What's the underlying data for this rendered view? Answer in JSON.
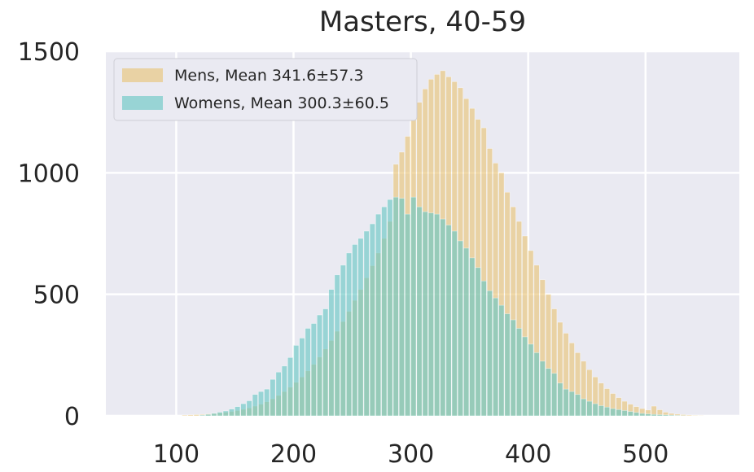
{
  "chart_data": {
    "type": "bar",
    "title": "Masters, 40-59",
    "xlabel": "",
    "ylabel": "",
    "xlim": [
      40,
      580
    ],
    "ylim": [
      0,
      1500
    ],
    "xticks": [
      100,
      200,
      300,
      400,
      500
    ],
    "yticks": [
      0,
      500,
      1000,
      1500
    ],
    "grid": true,
    "legend_position": "top-left",
    "bin_width": 5,
    "series": [
      {
        "name": "Mens, Mean 341.6±57.3",
        "color": "#E8C57A",
        "opacity": 0.65,
        "bin_start": 105,
        "values": [
          3,
          4,
          5,
          6,
          8,
          10,
          12,
          15,
          18,
          22,
          27,
          33,
          40,
          48,
          58,
          70,
          84,
          100,
          118,
          138,
          160,
          185,
          212,
          242,
          275,
          310,
          348,
          388,
          430,
          475,
          520,
          568,
          618,
          670,
          730,
          800,
          1035,
          1085,
          1150,
          1220,
          1290,
          1345,
          1385,
          1405,
          1420,
          1395,
          1375,
          1350,
          1305,
          1265,
          1220,
          1185,
          1100,
          1040,
          1000,
          920,
          860,
          800,
          740,
          680,
          620,
          560,
          500,
          440,
          385,
          340,
          300,
          260,
          225,
          190,
          160,
          135,
          112,
          92,
          75,
          60,
          48,
          38,
          30,
          24,
          40,
          25,
          15,
          10,
          7,
          5,
          3,
          2,
          1
        ]
      },
      {
        "name": "Womens, Mean 300.3±60.5",
        "color": "#6CC8C4",
        "opacity": 0.65,
        "bin_start": 120,
        "values": [
          3,
          6,
          10,
          15,
          20,
          28,
          38,
          50,
          62,
          88,
          100,
          110,
          150,
          180,
          205,
          240,
          290,
          320,
          360,
          380,
          415,
          440,
          520,
          580,
          620,
          670,
          705,
          730,
          760,
          790,
          830,
          860,
          890,
          900,
          895,
          830,
          900,
          860,
          840,
          835,
          830,
          810,
          785,
          760,
          720,
          690,
          650,
          610,
          555,
          515,
          485,
          455,
          420,
          395,
          360,
          325,
          295,
          260,
          225,
          195,
          175,
          135,
          110,
          100,
          88,
          70,
          60,
          50,
          42,
          36,
          30,
          26,
          22,
          18,
          14,
          10,
          8,
          6,
          5,
          4,
          3,
          2,
          1
        ]
      }
    ]
  }
}
